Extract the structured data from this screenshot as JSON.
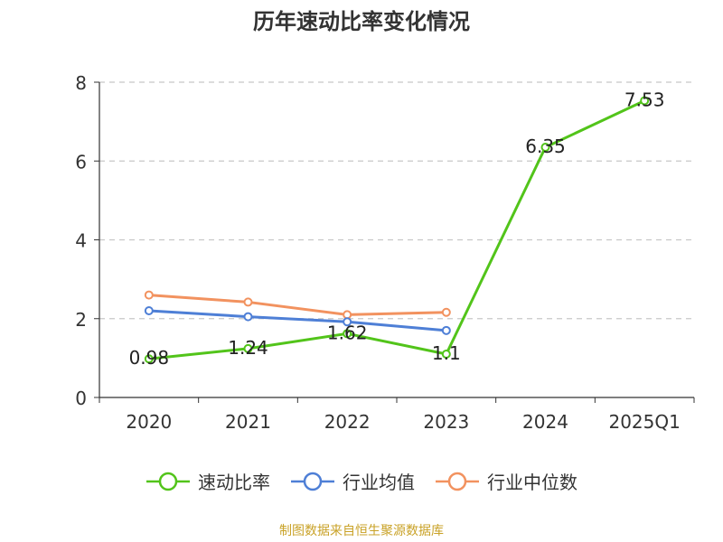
{
  "chart_data": {
    "type": "line",
    "title": "历年速动比率变化情况",
    "categories": [
      "2020",
      "2021",
      "2022",
      "2023",
      "2024",
      "2025Q1"
    ],
    "ylim": [
      0,
      8
    ],
    "yticks": [
      0,
      2,
      4,
      6,
      8
    ],
    "grid": true,
    "legend_position": "bottom",
    "series": [
      {
        "name": "速动比率",
        "color": "#52c41a",
        "values": [
          0.98,
          1.24,
          1.62,
          1.1,
          6.35,
          7.53
        ],
        "labels": [
          "0.98",
          "1.24",
          "1.62",
          "1.1",
          "6.35",
          "7.53"
        ]
      },
      {
        "name": "行业均值",
        "color": "#4e7fd6",
        "values": [
          2.2,
          2.05,
          1.92,
          1.7,
          null,
          null
        ]
      },
      {
        "name": "行业中位数",
        "color": "#f2925f",
        "values": [
          2.6,
          2.42,
          2.1,
          2.16,
          null,
          null
        ]
      }
    ]
  },
  "footer": {
    "source": "制图数据来自恒生聚源数据库",
    "source_color": "#c9a227"
  }
}
